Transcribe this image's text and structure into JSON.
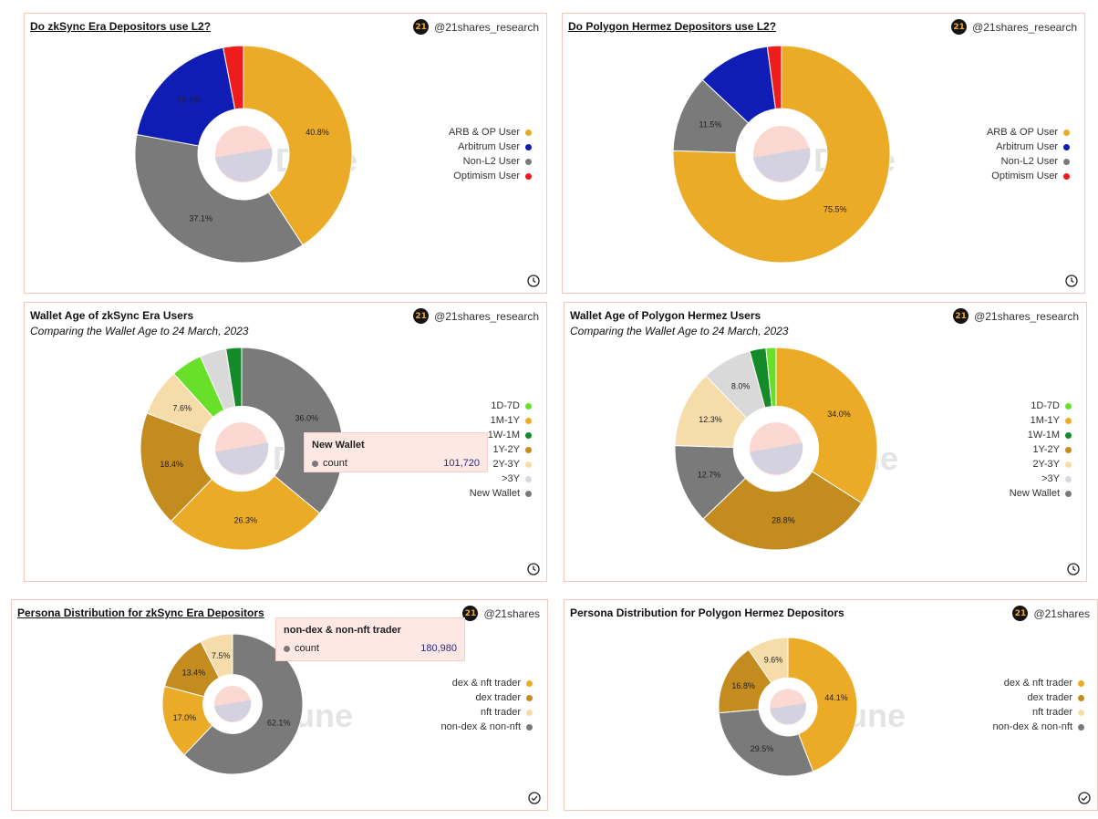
{
  "brand": {
    "handle_full": "@21shares_research",
    "handle_short": "@21shares",
    "logo_text": "21"
  },
  "watermark": "Dune",
  "colors": {
    "orange": "#ecab27",
    "blue": "#0f1db5",
    "grey": "#7a7a7a",
    "red": "#ef1c1c",
    "lightgreen": "#68e02a",
    "green": "#148a28",
    "darkgold": "#c48b1e",
    "beige": "#f6dca8",
    "lightgrey": "#d9d9d9"
  },
  "panels": [
    {
      "id": "p1",
      "title": "Do zkSync Era Depositors use L2?",
      "subtitle": "",
      "brand": "@21shares_research",
      "corner_icon": "clock-icon"
    },
    {
      "id": "p2",
      "title": "Do Polygon Hermez Depositors use L2?",
      "subtitle": "",
      "brand": "@21shares_research",
      "corner_icon": "clock-icon"
    },
    {
      "id": "p3",
      "title": "Wallet Age of zkSync Era Users",
      "subtitle": "Comparing the Wallet Age to 24 March, 2023",
      "brand": "@21shares_research",
      "corner_icon": "clock-icon"
    },
    {
      "id": "p4",
      "title": "Wallet Age of Polygon Hermez Users",
      "subtitle": "Comparing the Wallet Age to 24 March, 2023",
      "brand": "@21shares_research",
      "corner_icon": "clock-icon"
    },
    {
      "id": "p5",
      "title": "Persona Distribution for zkSync Era Depositors",
      "subtitle": "",
      "brand": "@21shares",
      "corner_icon": "check-circle-icon"
    },
    {
      "id": "p6",
      "title": "Persona Distribution for Polygon Hermez Depositors",
      "subtitle": "",
      "brand": "@21shares",
      "corner_icon": "check-circle-icon"
    }
  ],
  "tooltips": {
    "p3": {
      "title": "New Wallet",
      "label": "count",
      "value": "101,720",
      "color": "#7a7a7a"
    },
    "p5": {
      "title": "non-dex & non-nft trader",
      "label": "count",
      "value": "180,980",
      "color": "#7a7a7a"
    }
  },
  "chart_data": [
    {
      "panel": "p1",
      "type": "pie",
      "title": "Do zkSync Era Depositors use L2?",
      "slices": [
        {
          "name": "ARB & OP User",
          "value": 40.8,
          "label": "40.8%",
          "color": "#ecab27"
        },
        {
          "name": "Non-L2 User",
          "value": 37.1,
          "label": "37.1%",
          "color": "#7a7a7a"
        },
        {
          "name": "Arbitrum User",
          "value": 19.1,
          "label": "19.1%",
          "color": "#0f1db5"
        },
        {
          "name": "Optimism User",
          "value": 3.0,
          "label": "",
          "color": "#ef1c1c"
        }
      ],
      "legend": [
        {
          "name": "ARB & OP User",
          "color": "#ecab27"
        },
        {
          "name": "Arbitrum User",
          "color": "#0f1db5"
        },
        {
          "name": "Non-L2 User",
          "color": "#7a7a7a"
        },
        {
          "name": "Optimism User",
          "color": "#ef1c1c"
        }
      ]
    },
    {
      "panel": "p2",
      "type": "pie",
      "title": "Do Polygon Hermez Depositors use L2?",
      "slices": [
        {
          "name": "ARB & OP User",
          "value": 75.5,
          "label": "75.5%",
          "color": "#ecab27"
        },
        {
          "name": "Non-L2 User",
          "value": 11.5,
          "label": "11.5%",
          "color": "#7a7a7a"
        },
        {
          "name": "Arbitrum User",
          "value": 10.9,
          "label": "",
          "color": "#0f1db5"
        },
        {
          "name": "Optimism User",
          "value": 2.1,
          "label": "",
          "color": "#ef1c1c"
        }
      ],
      "legend": [
        {
          "name": "ARB & OP User",
          "color": "#ecab27"
        },
        {
          "name": "Arbitrum User",
          "color": "#0f1db5"
        },
        {
          "name": "Non-L2 User",
          "color": "#7a7a7a"
        },
        {
          "name": "Optimism User",
          "color": "#ef1c1c"
        }
      ]
    },
    {
      "panel": "p3",
      "type": "pie",
      "title": "Wallet Age of zkSync Era Users",
      "slices": [
        {
          "name": "New Wallet",
          "value": 36.0,
          "label": "36.0%",
          "color": "#7a7a7a"
        },
        {
          "name": "1M-1Y",
          "value": 26.3,
          "label": "26.3%",
          "color": "#ecab27"
        },
        {
          "name": "1Y-2Y",
          "value": 18.4,
          "label": "18.4%",
          "color": "#c48b1e"
        },
        {
          "name": "2Y-3Y",
          "value": 7.6,
          "label": "7.6%",
          "color": "#f6dca8"
        },
        {
          "name": "1D-7D",
          "value": 5.0,
          "label": "",
          "color": "#68e02a"
        },
        {
          "name": ">3Y",
          "value": 4.2,
          "label": "",
          "color": "#d9d9d9"
        },
        {
          "name": "1W-1M",
          "value": 2.5,
          "label": "",
          "color": "#148a28"
        }
      ],
      "legend": [
        {
          "name": "1D-7D",
          "color": "#68e02a"
        },
        {
          "name": "1M-1Y",
          "color": "#ecab27"
        },
        {
          "name": "1W-1M",
          "color": "#148a28"
        },
        {
          "name": "1Y-2Y",
          "color": "#c48b1e"
        },
        {
          "name": "2Y-3Y",
          "color": "#f6dca8"
        },
        {
          "name": ">3Y",
          "color": "#d9d9d9"
        },
        {
          "name": "New Wallet",
          "color": "#7a7a7a"
        }
      ]
    },
    {
      "panel": "p4",
      "type": "pie",
      "title": "Wallet Age of Polygon Hermez Users",
      "slices": [
        {
          "name": "1M-1Y",
          "value": 34.0,
          "label": "34.0%",
          "color": "#ecab27"
        },
        {
          "name": "1Y-2Y",
          "value": 28.8,
          "label": "28.8%",
          "color": "#c48b1e"
        },
        {
          "name": "New Wallet",
          "value": 12.7,
          "label": "12.7%",
          "color": "#7a7a7a"
        },
        {
          "name": "2Y-3Y",
          "value": 12.3,
          "label": "12.3%",
          "color": "#f6dca8"
        },
        {
          "name": ">3Y",
          "value": 8.0,
          "label": "8.0%",
          "color": "#d9d9d9"
        },
        {
          "name": "1W-1M",
          "value": 2.6,
          "label": "",
          "color": "#148a28"
        },
        {
          "name": "1D-7D",
          "value": 1.6,
          "label": "",
          "color": "#68e02a"
        }
      ],
      "legend": [
        {
          "name": "1D-7D",
          "color": "#68e02a"
        },
        {
          "name": "1M-1Y",
          "color": "#ecab27"
        },
        {
          "name": "1W-1M",
          "color": "#148a28"
        },
        {
          "name": "1Y-2Y",
          "color": "#c48b1e"
        },
        {
          "name": "2Y-3Y",
          "color": "#f6dca8"
        },
        {
          "name": ">3Y",
          "color": "#d9d9d9"
        },
        {
          "name": "New Wallet",
          "color": "#7a7a7a"
        }
      ]
    },
    {
      "panel": "p5",
      "type": "pie",
      "title": "Persona Distribution for zkSync Era Depositors",
      "slices": [
        {
          "name": "non-dex & non-nft",
          "value": 62.1,
          "label": "62.1%",
          "color": "#7a7a7a"
        },
        {
          "name": "dex & nft trader",
          "value": 17.0,
          "label": "17.0%",
          "color": "#ecab27"
        },
        {
          "name": "dex trader",
          "value": 13.4,
          "label": "13.4%",
          "color": "#c48b1e"
        },
        {
          "name": "nft trader",
          "value": 7.5,
          "label": "7.5%",
          "color": "#f6dca8"
        }
      ],
      "legend": [
        {
          "name": "dex & nft trader",
          "color": "#ecab27"
        },
        {
          "name": "dex trader",
          "color": "#c48b1e"
        },
        {
          "name": "nft trader",
          "color": "#f6dca8"
        },
        {
          "name": "non-dex & non-nft",
          "color": "#7a7a7a"
        }
      ]
    },
    {
      "panel": "p6",
      "type": "pie",
      "title": "Persona Distribution for Polygon Hermez Depositors",
      "slices": [
        {
          "name": "dex & nft trader",
          "value": 44.1,
          "label": "44.1%",
          "color": "#ecab27"
        },
        {
          "name": "non-dex & non-nft",
          "value": 29.5,
          "label": "29.5%",
          "color": "#7a7a7a"
        },
        {
          "name": "dex trader",
          "value": 16.8,
          "label": "16.8%",
          "color": "#c48b1e"
        },
        {
          "name": "nft trader",
          "value": 9.6,
          "label": "9.6%",
          "color": "#f6dca8"
        }
      ],
      "legend": [
        {
          "name": "dex & nft trader",
          "color": "#ecab27"
        },
        {
          "name": "dex trader",
          "color": "#c48b1e"
        },
        {
          "name": "nft trader",
          "color": "#f6dca8"
        },
        {
          "name": "non-dex & non-nft",
          "color": "#7a7a7a"
        }
      ]
    }
  ]
}
